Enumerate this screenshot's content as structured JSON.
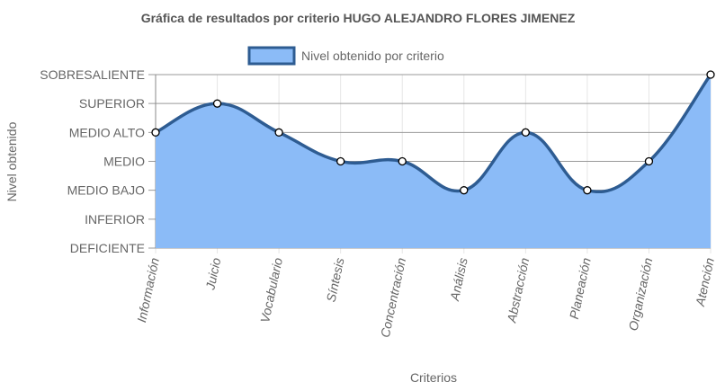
{
  "chart_data": {
    "type": "area",
    "title": "Gráfica de resultados por criterio HUGO ALEJANDRO FLORES JIMENEZ",
    "xlabel": "Criterios",
    "ylabel": "Nivel obtenido",
    "categories": [
      "Información",
      "Juicio",
      "Vocabulario",
      "Síntesis",
      "Concentración",
      "Análisis",
      "Abstracción",
      "Planeación",
      "Organización",
      "Atención"
    ],
    "y_levels": [
      "DEFICIENTE",
      "INFERIOR",
      "MEDIO BAJO",
      "MEDIO",
      "MEDIO ALTO",
      "SUPERIOR",
      "SOBRESALIENTE"
    ],
    "series": [
      {
        "name": "Nivel obtenido por criterio",
        "values": [
          4,
          5,
          4,
          3,
          3,
          2,
          4,
          2,
          3,
          6
        ],
        "fill": "#8bbbf7",
        "stroke": "#2e5c92"
      }
    ],
    "ylim": [
      0,
      6
    ],
    "grid": true,
    "legend_position": "top"
  }
}
